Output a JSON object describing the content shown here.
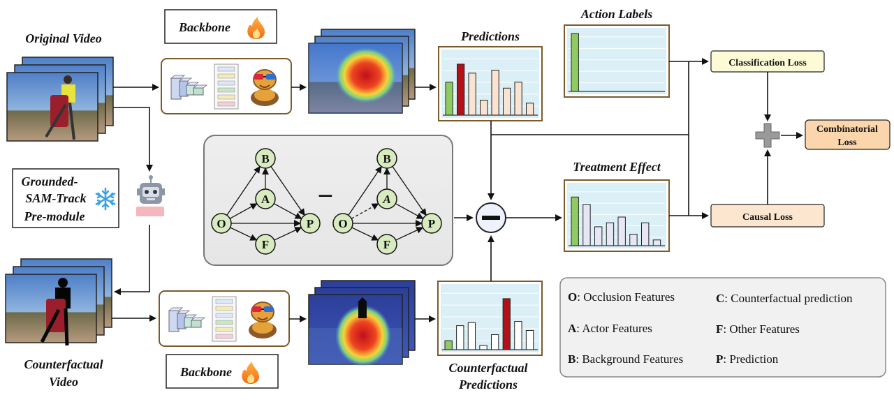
{
  "titles": {
    "original_video": "Original Video",
    "counterfactual_video_1": "Counterfactual",
    "counterfactual_video_2": "Video",
    "backbone_top": "Backbone",
    "backbone_bottom": "Backbone",
    "predictions": "Predictions",
    "action_labels": "Action Labels",
    "treatment_effect": "Treatment Effect",
    "counterfactual_predictions_1": "Counterfactual",
    "counterfactual_predictions_2": "Predictions",
    "grounded_1": "Grounded-",
    "grounded_2": "SAM-Track",
    "grounded_3": "Pre-module"
  },
  "losses": {
    "classification": "Classification Loss",
    "causal": "Causal Loss",
    "combinatorial_1": "Combinatorial",
    "combinatorial_2": "Loss"
  },
  "graph_nodes": [
    "B",
    "A",
    "O",
    "P",
    "F"
  ],
  "graph_nodes_right": [
    "B",
    "A",
    "O",
    "P",
    "F"
  ],
  "minus_symbol": "−",
  "legend": [
    {
      "key": "O",
      "text": ": Occlusion Features"
    },
    {
      "key": "C",
      "text": ": Counterfactual prediction"
    },
    {
      "key": "A",
      "text": ": Actor Features"
    },
    {
      "key": "F",
      "text": ": Other Features"
    },
    {
      "key": "B",
      "text": ": Background Features"
    },
    {
      "key": "P",
      "text": ": Prediction"
    }
  ],
  "colors": {
    "green_bar": "#8fca63",
    "red_bar": "#b3101a",
    "peach_bar": "#fbe3d2",
    "lavender_bar": "#e6e6f5",
    "white_bar": "#ffffff",
    "panel_frame": "#7b5a2c",
    "chart_bg": "#d7eef7",
    "node_fill": "#d8eabf",
    "loss_yellow": "#fdfbd6",
    "loss_peach": "#fde6cf",
    "loss_orange": "#fbd6ad"
  },
  "icons": [
    "flame-icon",
    "snowflake-icon",
    "robot-icon",
    "plus-icon",
    "minus-icon",
    "snake-mascot-icon",
    "layer-stack-icon"
  ],
  "chart_data": [
    {
      "type": "bar",
      "name_ref": "Predictions",
      "values": [
        0.55,
        0.85,
        0.7,
        0.25,
        0.75,
        0.45,
        0.55,
        0.2
      ],
      "colors": [
        "green_bar",
        "red_bar",
        "peach_bar",
        "peach_bar",
        "peach_bar",
        "peach_bar",
        "peach_bar",
        "peach_bar"
      ]
    },
    {
      "type": "bar",
      "name_ref": "Action Labels",
      "values": [
        1.0,
        0,
        0,
        0,
        0,
        0,
        0,
        0
      ],
      "colors": [
        "green_bar"
      ]
    },
    {
      "type": "bar",
      "name_ref": "Treatment Effect",
      "values": [
        0.85,
        0.72,
        0.33,
        0.4,
        0.5,
        0.2,
        0.4,
        0.1
      ],
      "colors": [
        "green_bar",
        "lavender_bar",
        "lavender_bar",
        "lavender_bar",
        "lavender_bar",
        "lavender_bar",
        "lavender_bar",
        "lavender_bar"
      ]
    },
    {
      "type": "bar",
      "name_ref": "Counterfactual Predictions",
      "values": [
        0.15,
        0.4,
        0.45,
        0.07,
        0.25,
        0.85,
        0.47,
        0.32
      ],
      "colors": [
        "green_bar",
        "white_bar",
        "white_bar",
        "white_bar",
        "white_bar",
        "red_bar",
        "white_bar",
        "white_bar"
      ]
    }
  ]
}
